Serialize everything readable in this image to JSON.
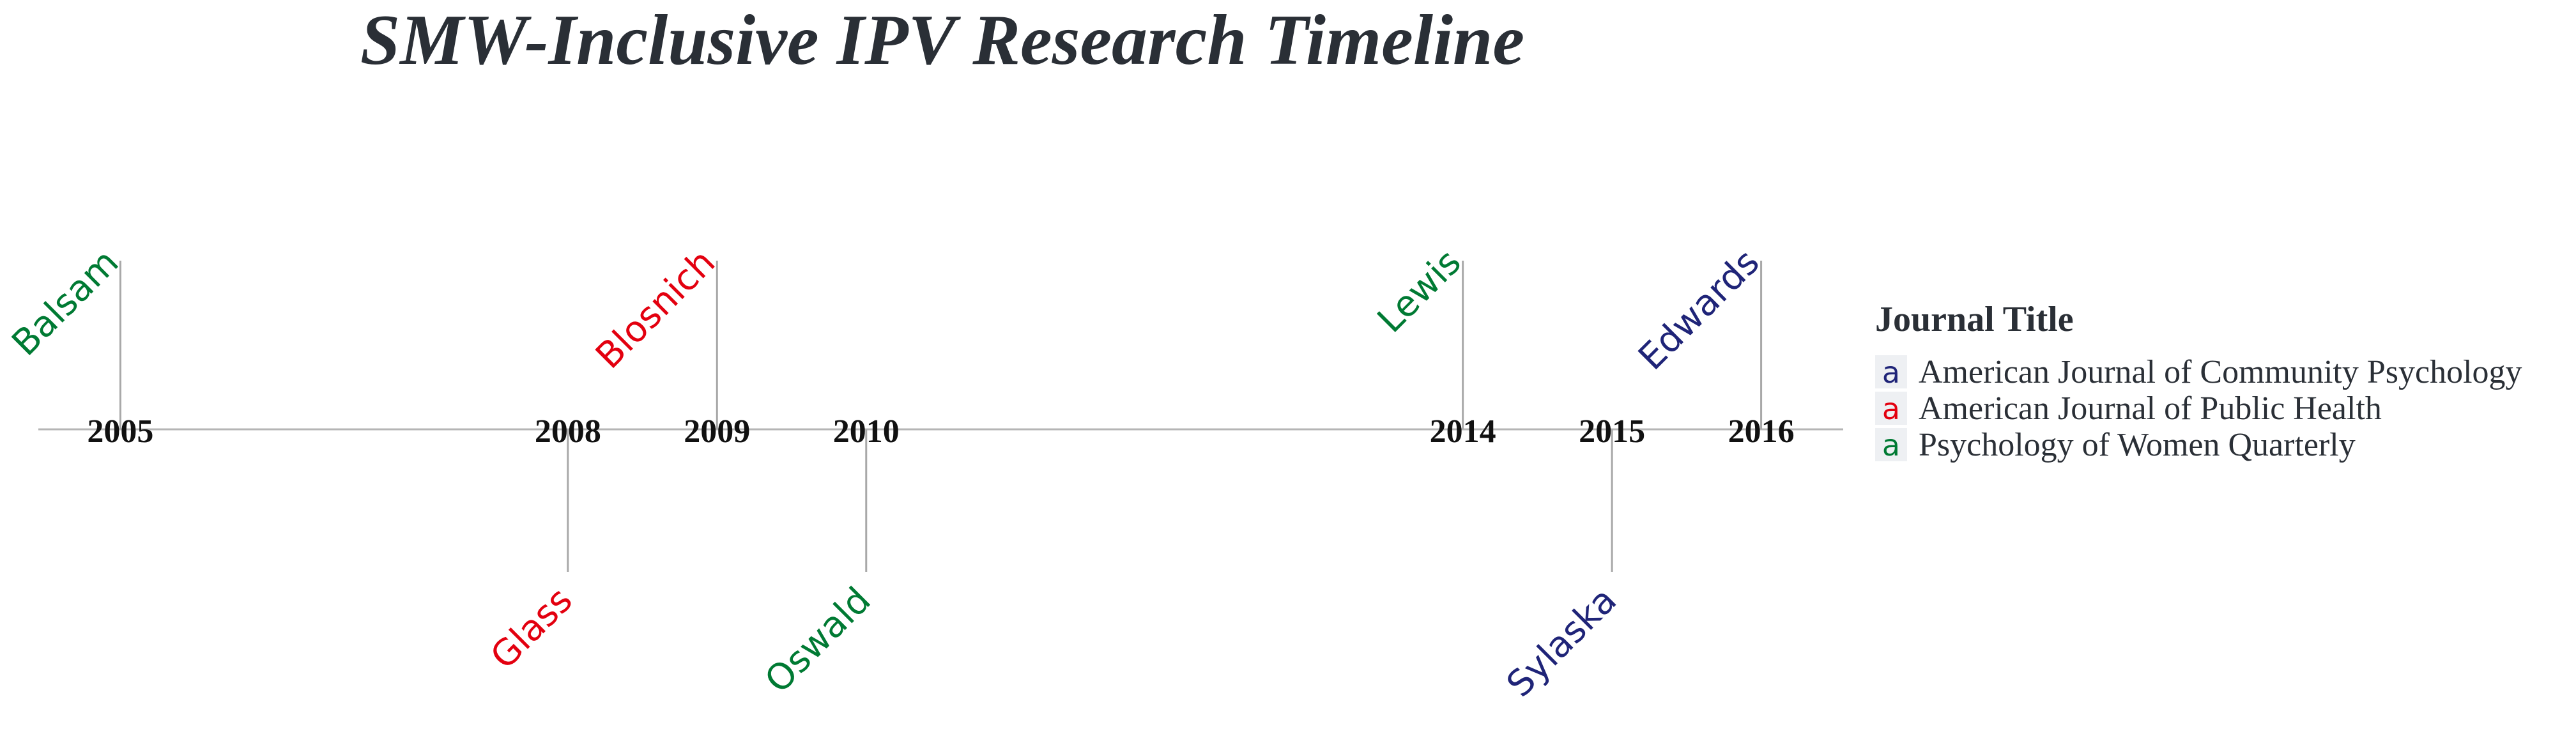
{
  "chart_data": {
    "type": "timeline",
    "title": "SMW-Inclusive IPV Research Timeline",
    "x_range": [
      2004.45,
      2016.55
    ],
    "years": [
      2005,
      2008,
      2009,
      2010,
      2014,
      2015,
      2016
    ],
    "events": [
      {
        "year": 2005,
        "author": "Balsam",
        "journal": "Psychology of Women Quarterly",
        "side": "above"
      },
      {
        "year": 2008,
        "author": "Glass",
        "journal": "American Journal of Public Health",
        "side": "below"
      },
      {
        "year": 2009,
        "author": "Blosnich",
        "journal": "American Journal of Public Health",
        "side": "above"
      },
      {
        "year": 2010,
        "author": "Oswald",
        "journal": "Psychology of Women Quarterly",
        "side": "below"
      },
      {
        "year": 2014,
        "author": "Lewis",
        "journal": "Psychology of Women Quarterly",
        "side": "above"
      },
      {
        "year": 2015,
        "author": "Sylaska",
        "journal": "American Journal of Community Psychology",
        "side": "below"
      },
      {
        "year": 2016,
        "author": "Edwards",
        "journal": "American Journal of Community Psychology",
        "side": "above"
      }
    ],
    "legend": {
      "title": "Journal Title",
      "placement": "right",
      "entries": [
        {
          "label": "American Journal of Community Psychology",
          "color": "#1f2478"
        },
        {
          "label": "American Journal of Public Health",
          "color": "#e3000f"
        },
        {
          "label": "Psychology of Women Quarterly",
          "color": "#007a33"
        }
      ]
    },
    "grid": false
  },
  "colors": {
    "axis_line": "#b5b5b5",
    "stem": "#a8a8a8",
    "title": "#2a2f36"
  }
}
